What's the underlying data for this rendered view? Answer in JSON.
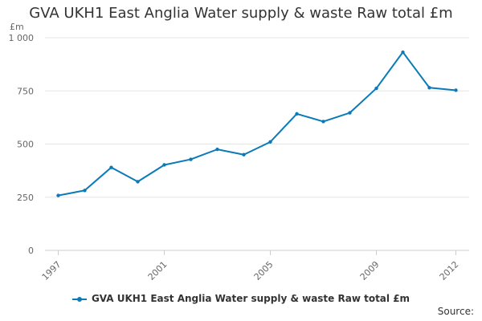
{
  "chart_data": {
    "type": "line",
    "title": "GVA UKH1 East Anglia Water supply & waste Raw total £m",
    "ylabel": "£m",
    "xlabel": "",
    "x": [
      1997,
      1998,
      1999,
      2000,
      2001,
      2002,
      2003,
      2004,
      2005,
      2006,
      2007,
      2008,
      2009,
      2010,
      2011,
      2012
    ],
    "x_tick_labels": [
      "1997",
      "2001",
      "2005",
      "2009",
      "2012"
    ],
    "x_tick_values": [
      1997,
      2001,
      2005,
      2009,
      2012
    ],
    "y_tick_labels": [
      "0",
      "250",
      "500",
      "750",
      "1 000"
    ],
    "y_tick_values": [
      0,
      250,
      500,
      750,
      1000
    ],
    "ylim": [
      0,
      1000
    ],
    "grid": true,
    "legend_position": "bottom",
    "series": [
      {
        "name": "GVA UKH1 East Anglia Water supply & waste Raw total £m",
        "color": "#0a7ab9",
        "values": [
          258,
          282,
          390,
          323,
          402,
          428,
          475,
          450,
          510,
          642,
          606,
          647,
          762,
          932,
          765,
          753
        ]
      }
    ]
  },
  "source_label": "Source:"
}
